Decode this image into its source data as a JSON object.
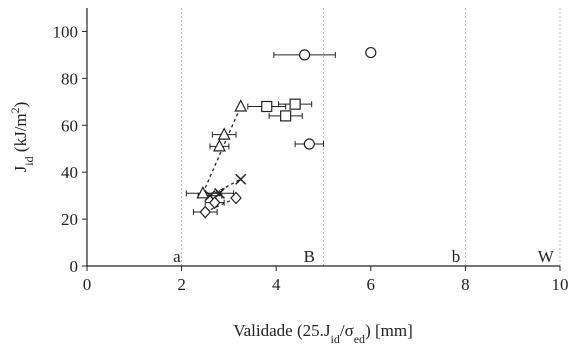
{
  "chart_data": {
    "type": "scatter",
    "xlabel": {
      "main": "Validade (25.J",
      "sub1": "id",
      "mid": "/σ",
      "sub2": "ed",
      "tail": ") [mm]"
    },
    "ylabel": {
      "main": "J",
      "sub": "id",
      "unit": " (kJ/m",
      "sup": "2",
      "close": ")"
    },
    "xlim": [
      0,
      10
    ],
    "ylim": [
      0,
      110
    ],
    "xticks": [
      0,
      2,
      4,
      6,
      8,
      10
    ],
    "yticks": [
      0,
      20,
      40,
      60,
      80,
      100
    ],
    "grid": false,
    "vlines": [
      2,
      5,
      8,
      10
    ],
    "region_labels": [
      {
        "text": "a",
        "x": 1.9
      },
      {
        "text": "B",
        "x": 4.7
      },
      {
        "text": "b",
        "x": 7.8
      },
      {
        "text": "W",
        "x": 9.7
      }
    ],
    "series": [
      {
        "marker": "circle",
        "points": [
          {
            "x": 4.6,
            "y": 90,
            "xerr": 0.65
          },
          {
            "x": 6.0,
            "y": 91,
            "xerr": 0
          },
          {
            "x": 4.7,
            "y": 52,
            "xerr": 0.3
          }
        ]
      },
      {
        "marker": "square",
        "points": [
          {
            "x": 3.8,
            "y": 68,
            "xerr": 0.4
          },
          {
            "x": 4.4,
            "y": 69,
            "xerr": 0.35
          },
          {
            "x": 4.2,
            "y": 64,
            "xerr": 0.35
          }
        ]
      },
      {
        "marker": "triangle",
        "trendline": true,
        "points": [
          {
            "x": 3.25,
            "y": 68,
            "xerr": 0
          },
          {
            "x": 2.9,
            "y": 56,
            "xerr": 0.25
          },
          {
            "x": 2.8,
            "y": 51,
            "xerr": 0.2
          },
          {
            "x": 2.45,
            "y": 31,
            "xerr": 0.35
          }
        ]
      },
      {
        "marker": "x",
        "trendline": true,
        "points": [
          {
            "x": 3.25,
            "y": 37,
            "xerr": 0
          },
          {
            "x": 2.8,
            "y": 31,
            "xerr": 0.3
          },
          {
            "x": 2.6,
            "y": 30,
            "xerr": 0.25
          }
        ]
      },
      {
        "marker": "diamond",
        "trendline": true,
        "points": [
          {
            "x": 3.15,
            "y": 29,
            "xerr": 0
          },
          {
            "x": 2.7,
            "y": 27,
            "xerr": 0.2
          },
          {
            "x": 2.5,
            "y": 23,
            "xerr": 0.25
          }
        ]
      }
    ]
  }
}
